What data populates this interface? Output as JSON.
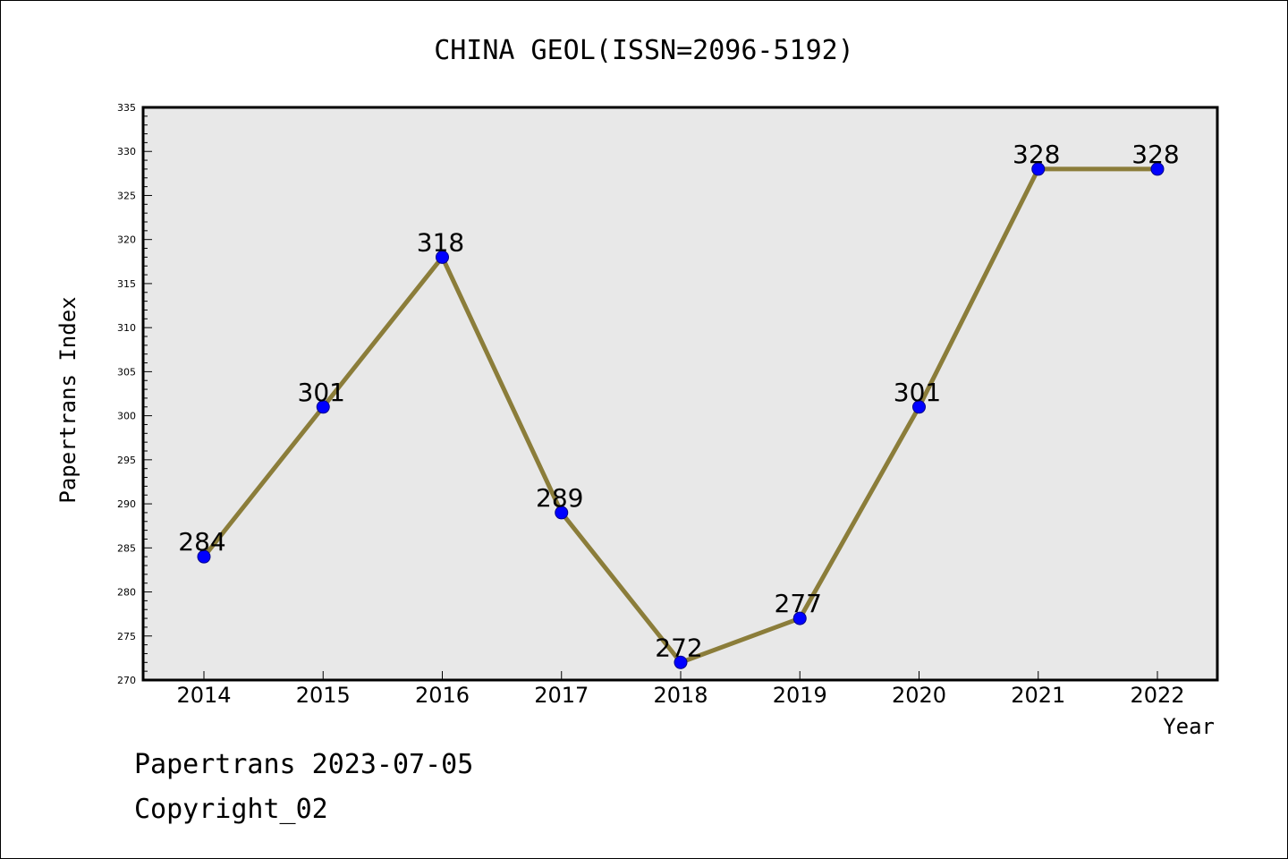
{
  "chart_data": {
    "type": "line",
    "title": "CHINA GEOL(ISSN=2096-5192)",
    "xlabel": "Year",
    "ylabel": "Papertrans Index",
    "categories": [
      "2014",
      "2015",
      "2016",
      "2017",
      "2018",
      "2019",
      "2020",
      "2021",
      "2022"
    ],
    "series": [
      {
        "values": [
          284,
          301,
          318,
          289,
          272,
          277,
          301,
          328,
          328
        ]
      }
    ],
    "data_labels": [
      "284",
      "301",
      "318",
      "289",
      "272",
      "277",
      "301",
      "328",
      "328"
    ],
    "ylim": [
      270,
      335
    ],
    "yticks": [
      270,
      275,
      280,
      285,
      290,
      295,
      300,
      305,
      310,
      315,
      320,
      325,
      330,
      335
    ],
    "grid": false,
    "legend": "none",
    "colors": {
      "line": "#8b7d3a",
      "marker": "#0000ff",
      "plot_bg": "#e8e8e8"
    }
  },
  "footer": {
    "source": "Papertrans 2023-07-05",
    "copyright": "Copyright_02"
  }
}
